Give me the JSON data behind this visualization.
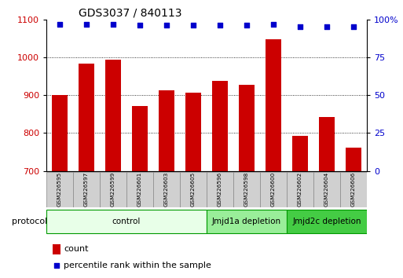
{
  "title": "GDS3037 / 840113",
  "samples": [
    "GSM226595",
    "GSM226597",
    "GSM226599",
    "GSM226601",
    "GSM226603",
    "GSM226605",
    "GSM226596",
    "GSM226598",
    "GSM226600",
    "GSM226602",
    "GSM226604",
    "GSM226606"
  ],
  "counts": [
    900,
    983,
    993,
    872,
    912,
    907,
    937,
    928,
    1047,
    792,
    843,
    762
  ],
  "percentile_ranks": [
    97,
    97,
    97,
    96,
    96,
    96,
    96,
    96,
    97,
    95,
    95,
    95
  ],
  "groups": [
    {
      "label": "control",
      "start": 0,
      "end": 6,
      "color": "#e8ffe8",
      "border": "#009900"
    },
    {
      "label": "Jmjd1a depletion",
      "start": 6,
      "end": 9,
      "color": "#99ee99",
      "border": "#009900"
    },
    {
      "label": "Jmjd2c depletion",
      "start": 9,
      "end": 12,
      "color": "#44cc44",
      "border": "#009900"
    }
  ],
  "bar_color": "#cc0000",
  "dot_color": "#0000cc",
  "left_ylim": [
    700,
    1100
  ],
  "right_ylim": [
    0,
    100
  ],
  "left_yticks": [
    700,
    800,
    900,
    1000,
    1100
  ],
  "right_yticks": [
    0,
    25,
    50,
    75,
    100
  ],
  "right_yticklabels": [
    "0",
    "25",
    "50",
    "75",
    "100%"
  ],
  "grid_values": [
    800,
    900,
    1000
  ],
  "bar_width": 0.6,
  "figsize": [
    5.13,
    3.54
  ],
  "dpi": 100
}
